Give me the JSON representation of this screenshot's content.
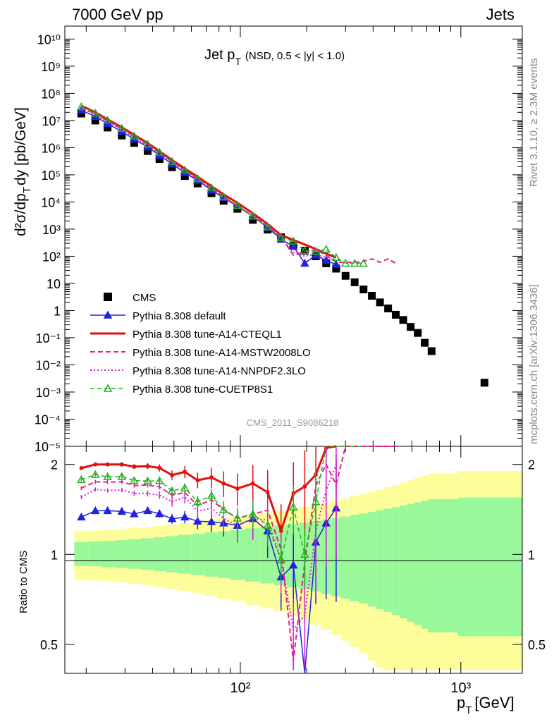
{
  "header": {
    "left": "7000 GeV pp",
    "right": "Jets"
  },
  "side_labels": {
    "rivet": "Rivet 3.1.10, ≥ 2.3M events",
    "mcplots": "mcplots.cern.ch [arXiv:1306.3436]"
  },
  "watermark": "CMS_2011_S9086218",
  "chart_data": {
    "type": "scatter",
    "title_main": "Jet p",
    "title_sub": "T",
    "title_cut": "(NSD, 0.5 < |y| < 1.0)",
    "ylabel_main": "d²σ/dp",
    "ylabel_sub": "T",
    "ylabel_rest": "dy [pb/GeV]",
    "xlabel_main": "p",
    "xlabel_sub": "T",
    "xlabel_rest": "[GeV]",
    "ratio_ylabel": "Ratio to CMS",
    "xscale": "log",
    "xlim": [
      16,
      1900
    ],
    "ylim_main": [
      1e-05,
      30000000000
    ],
    "ylim_ratio": [
      0.4,
      2.3
    ],
    "legend_position": "middle-left",
    "y_tick_labels": [
      "10⁻⁵",
      "10⁻⁴",
      "10⁻³",
      "10⁻²",
      "10⁻¹",
      "1",
      "10",
      "10²",
      "10³",
      "10⁴",
      "10⁵",
      "10⁶",
      "10⁷",
      "10⁸",
      "10⁹",
      "10¹⁰"
    ],
    "x_tick_labels": [
      "10²",
      "10³"
    ],
    "ratio_tick_labels": [
      "0.5",
      "1",
      "2"
    ],
    "band_colors": {
      "stat": "#99f899",
      "syst": "#fdfd9a"
    },
    "series": [
      {
        "name": "CMS",
        "color": "#000000",
        "style": "square",
        "x": [
          19,
          22,
          25,
          29,
          33,
          38,
          43,
          49,
          56,
          64,
          74,
          84,
          97,
          114,
          133,
          153,
          174,
          196,
          220,
          245,
          272,
          300,
          330,
          362,
          395,
          430,
          468,
          507,
          548,
          592,
          638,
          686,
          737,
          1280
        ],
        "y": [
          18000000,
          10000000,
          5500000,
          2800000,
          1500000,
          750000,
          380000,
          190000,
          90000,
          48000,
          21000,
          11000,
          5600,
          2200,
          960,
          500,
          250,
          160,
          100,
          55,
          35,
          19,
          11,
          6,
          3.5,
          2,
          1.2,
          0.7,
          0.45,
          0.25,
          0.15,
          0.065,
          0.032,
          0.0022
        ]
      },
      {
        "name": "Pythia 8.308 default",
        "color": "#2121e0",
        "style": "triangle",
        "x": [
          19,
          22,
          25,
          29,
          33,
          38,
          43,
          49,
          56,
          64,
          74,
          84,
          97,
          114,
          133,
          153,
          174,
          196,
          220,
          245,
          272
        ],
        "y": [
          24000000,
          14000000,
          7700000,
          3900000,
          2050000,
          1050000,
          520000,
          250000,
          120000,
          62000,
          27000,
          14000,
          7000,
          2900,
          1150,
          420,
          230,
          55,
          110,
          70,
          50
        ]
      },
      {
        "name": "Pythia 8.308 tune-A14-CTEQL1",
        "color": "#e30f0f",
        "style": "solid",
        "x": [
          19,
          22,
          25,
          29,
          33,
          38,
          43,
          49,
          56,
          64,
          74,
          84,
          97,
          114,
          133,
          153,
          174,
          196,
          220,
          245,
          272
        ],
        "y": [
          35000000,
          20000000,
          11000000,
          5600000,
          2950000,
          1480000,
          740000,
          350000,
          170000,
          85000,
          38000,
          19000,
          9300,
          3800,
          1550,
          600,
          400,
          270,
          185,
          125,
          90
        ]
      },
      {
        "name": "Pythia 8.308 tune-A14-MSTW2008LO",
        "color": "#ec1c8b",
        "style": "dashed",
        "x": [
          19,
          22,
          25,
          29,
          33,
          38,
          43,
          49,
          56,
          64,
          74,
          84,
          97,
          114,
          133,
          153,
          174,
          196,
          220,
          245,
          272,
          300,
          330,
          362,
          395,
          430,
          468,
          507
        ],
        "y": [
          30000000,
          17500000,
          9600000,
          4900000,
          2550000,
          1280000,
          640000,
          300000,
          145000,
          70000,
          32000,
          15500,
          7400,
          3000,
          1350,
          520,
          110,
          150,
          170,
          110,
          60,
          60,
          60,
          65,
          80,
          60,
          80,
          55
        ]
      },
      {
        "name": "Pythia 8.308 tune-A14-NNPDF2.3LO",
        "color": "#d91bd9",
        "style": "dotted",
        "x": [
          19,
          22,
          25,
          29,
          33,
          38,
          43,
          49,
          56,
          64,
          74,
          84,
          97,
          114,
          133,
          153,
          174,
          196,
          220,
          245,
          272
        ],
        "y": [
          28000000,
          16500000,
          9000000,
          4600000,
          2400000,
          1200000,
          600000,
          285000,
          140000,
          67000,
          30000,
          14500,
          7000,
          2900,
          1250,
          480,
          140,
          100,
          120,
          90,
          70
        ]
      },
      {
        "name": "Pythia 8.308 tune-CUETP8S1",
        "color": "#21b021",
        "style": "dashed-open-triangle",
        "x": [
          19,
          22,
          25,
          29,
          33,
          38,
          43,
          49,
          56,
          64,
          74,
          84,
          97,
          114,
          133,
          153,
          174,
          196,
          220,
          245,
          272,
          300,
          330,
          362
        ],
        "y": [
          32000000,
          18500000,
          10000000,
          5100000,
          2650000,
          1320000,
          670000,
          310000,
          150000,
          72000,
          33000,
          15500,
          7400,
          3000,
          1200,
          480,
          360,
          160,
          150,
          180,
          90,
          55,
          55,
          55
        ]
      }
    ]
  }
}
